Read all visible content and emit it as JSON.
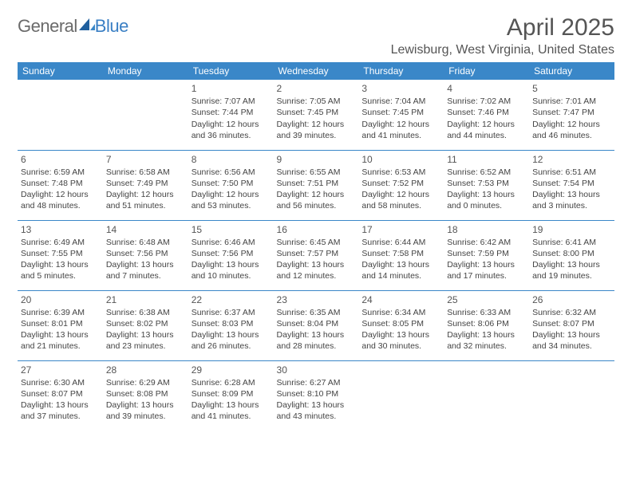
{
  "brand": {
    "part1": "General",
    "part2": "Blue"
  },
  "title": "April 2025",
  "location": "Lewisburg, West Virginia, United States",
  "colors": {
    "header_bg": "#3a87c8",
    "header_text": "#ffffff",
    "border": "#3a87c8",
    "body_text": "#444444",
    "title_text": "#555555",
    "logo_gray": "#6a6a6a",
    "logo_blue": "#3a7fc4",
    "page_bg": "#ffffff"
  },
  "weekdays": [
    "Sunday",
    "Monday",
    "Tuesday",
    "Wednesday",
    "Thursday",
    "Friday",
    "Saturday"
  ],
  "weeks": [
    [
      null,
      null,
      {
        "n": "1",
        "sr": "Sunrise: 7:07 AM",
        "ss": "Sunset: 7:44 PM",
        "dl": "Daylight: 12 hours and 36 minutes."
      },
      {
        "n": "2",
        "sr": "Sunrise: 7:05 AM",
        "ss": "Sunset: 7:45 PM",
        "dl": "Daylight: 12 hours and 39 minutes."
      },
      {
        "n": "3",
        "sr": "Sunrise: 7:04 AM",
        "ss": "Sunset: 7:45 PM",
        "dl": "Daylight: 12 hours and 41 minutes."
      },
      {
        "n": "4",
        "sr": "Sunrise: 7:02 AM",
        "ss": "Sunset: 7:46 PM",
        "dl": "Daylight: 12 hours and 44 minutes."
      },
      {
        "n": "5",
        "sr": "Sunrise: 7:01 AM",
        "ss": "Sunset: 7:47 PM",
        "dl": "Daylight: 12 hours and 46 minutes."
      }
    ],
    [
      {
        "n": "6",
        "sr": "Sunrise: 6:59 AM",
        "ss": "Sunset: 7:48 PM",
        "dl": "Daylight: 12 hours and 48 minutes."
      },
      {
        "n": "7",
        "sr": "Sunrise: 6:58 AM",
        "ss": "Sunset: 7:49 PM",
        "dl": "Daylight: 12 hours and 51 minutes."
      },
      {
        "n": "8",
        "sr": "Sunrise: 6:56 AM",
        "ss": "Sunset: 7:50 PM",
        "dl": "Daylight: 12 hours and 53 minutes."
      },
      {
        "n": "9",
        "sr": "Sunrise: 6:55 AM",
        "ss": "Sunset: 7:51 PM",
        "dl": "Daylight: 12 hours and 56 minutes."
      },
      {
        "n": "10",
        "sr": "Sunrise: 6:53 AM",
        "ss": "Sunset: 7:52 PM",
        "dl": "Daylight: 12 hours and 58 minutes."
      },
      {
        "n": "11",
        "sr": "Sunrise: 6:52 AM",
        "ss": "Sunset: 7:53 PM",
        "dl": "Daylight: 13 hours and 0 minutes."
      },
      {
        "n": "12",
        "sr": "Sunrise: 6:51 AM",
        "ss": "Sunset: 7:54 PM",
        "dl": "Daylight: 13 hours and 3 minutes."
      }
    ],
    [
      {
        "n": "13",
        "sr": "Sunrise: 6:49 AM",
        "ss": "Sunset: 7:55 PM",
        "dl": "Daylight: 13 hours and 5 minutes."
      },
      {
        "n": "14",
        "sr": "Sunrise: 6:48 AM",
        "ss": "Sunset: 7:56 PM",
        "dl": "Daylight: 13 hours and 7 minutes."
      },
      {
        "n": "15",
        "sr": "Sunrise: 6:46 AM",
        "ss": "Sunset: 7:56 PM",
        "dl": "Daylight: 13 hours and 10 minutes."
      },
      {
        "n": "16",
        "sr": "Sunrise: 6:45 AM",
        "ss": "Sunset: 7:57 PM",
        "dl": "Daylight: 13 hours and 12 minutes."
      },
      {
        "n": "17",
        "sr": "Sunrise: 6:44 AM",
        "ss": "Sunset: 7:58 PM",
        "dl": "Daylight: 13 hours and 14 minutes."
      },
      {
        "n": "18",
        "sr": "Sunrise: 6:42 AM",
        "ss": "Sunset: 7:59 PM",
        "dl": "Daylight: 13 hours and 17 minutes."
      },
      {
        "n": "19",
        "sr": "Sunrise: 6:41 AM",
        "ss": "Sunset: 8:00 PM",
        "dl": "Daylight: 13 hours and 19 minutes."
      }
    ],
    [
      {
        "n": "20",
        "sr": "Sunrise: 6:39 AM",
        "ss": "Sunset: 8:01 PM",
        "dl": "Daylight: 13 hours and 21 minutes."
      },
      {
        "n": "21",
        "sr": "Sunrise: 6:38 AM",
        "ss": "Sunset: 8:02 PM",
        "dl": "Daylight: 13 hours and 23 minutes."
      },
      {
        "n": "22",
        "sr": "Sunrise: 6:37 AM",
        "ss": "Sunset: 8:03 PM",
        "dl": "Daylight: 13 hours and 26 minutes."
      },
      {
        "n": "23",
        "sr": "Sunrise: 6:35 AM",
        "ss": "Sunset: 8:04 PM",
        "dl": "Daylight: 13 hours and 28 minutes."
      },
      {
        "n": "24",
        "sr": "Sunrise: 6:34 AM",
        "ss": "Sunset: 8:05 PM",
        "dl": "Daylight: 13 hours and 30 minutes."
      },
      {
        "n": "25",
        "sr": "Sunrise: 6:33 AM",
        "ss": "Sunset: 8:06 PM",
        "dl": "Daylight: 13 hours and 32 minutes."
      },
      {
        "n": "26",
        "sr": "Sunrise: 6:32 AM",
        "ss": "Sunset: 8:07 PM",
        "dl": "Daylight: 13 hours and 34 minutes."
      }
    ],
    [
      {
        "n": "27",
        "sr": "Sunrise: 6:30 AM",
        "ss": "Sunset: 8:07 PM",
        "dl": "Daylight: 13 hours and 37 minutes."
      },
      {
        "n": "28",
        "sr": "Sunrise: 6:29 AM",
        "ss": "Sunset: 8:08 PM",
        "dl": "Daylight: 13 hours and 39 minutes."
      },
      {
        "n": "29",
        "sr": "Sunrise: 6:28 AM",
        "ss": "Sunset: 8:09 PM",
        "dl": "Daylight: 13 hours and 41 minutes."
      },
      {
        "n": "30",
        "sr": "Sunrise: 6:27 AM",
        "ss": "Sunset: 8:10 PM",
        "dl": "Daylight: 13 hours and 43 minutes."
      },
      null,
      null,
      null
    ]
  ]
}
